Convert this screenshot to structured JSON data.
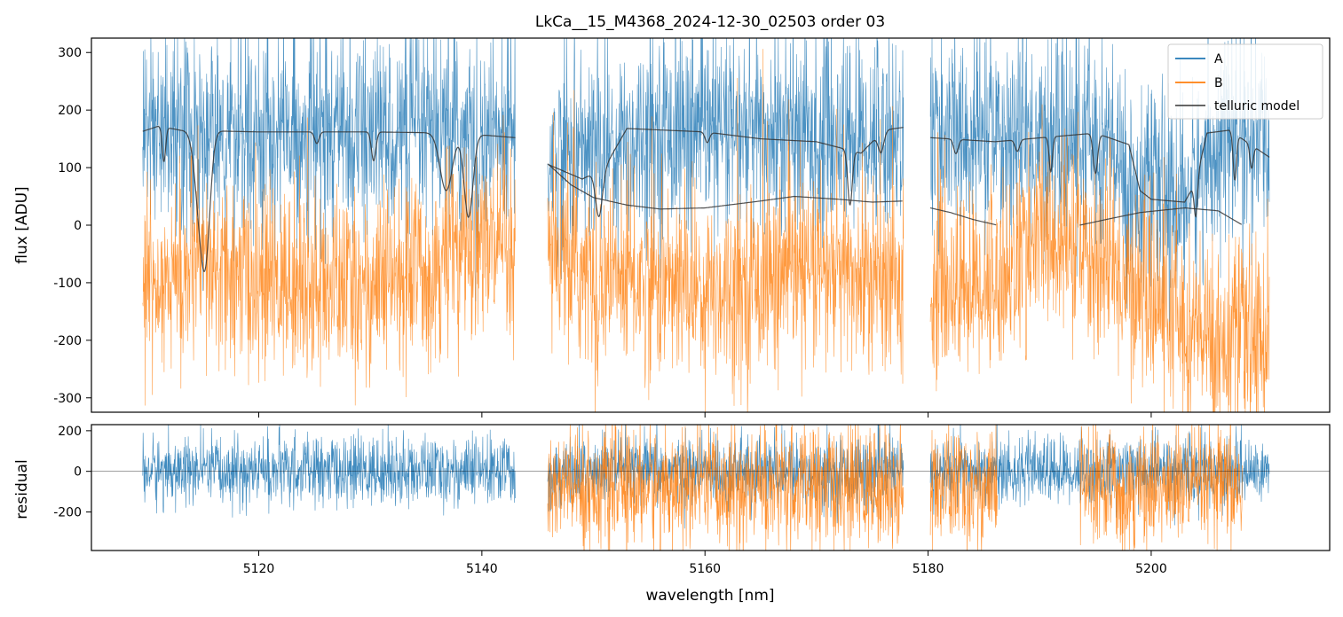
{
  "chart_data": [
    {
      "type": "line",
      "title": "LkCa__15_M4368_2024-12-30_02503  order 03",
      "xlabel": "",
      "ylabel": "flux [ADU]",
      "xlim": [
        5105,
        5216
      ],
      "ylim": [
        -325,
        325
      ],
      "xticks": [
        5120,
        5140,
        5160,
        5180,
        5200
      ],
      "yticks": [
        -300,
        -200,
        -100,
        0,
        100,
        200,
        300
      ],
      "legend": {
        "placement": "top-right",
        "entries": [
          "A",
          "B",
          "telluric model"
        ]
      },
      "segments": [
        [
          5109.6,
          5143.0
        ],
        [
          5145.9,
          5177.8
        ],
        [
          5180.2,
          5210.6
        ]
      ],
      "series": [
        {
          "name": "A",
          "color": "#1f77b4",
          "baseline": [
            [
              5109.6,
              165
            ],
            [
              5120,
              160
            ],
            [
              5130,
              160
            ],
            [
              5138,
              150
            ],
            [
              5143,
              150
            ],
            [
              5146,
              120
            ],
            [
              5150,
              130
            ],
            [
              5155,
              165
            ],
            [
              5160,
              160
            ],
            [
              5170,
              150
            ],
            [
              5177.8,
              160
            ],
            [
              5180.2,
              150
            ],
            [
              5190,
              150
            ],
            [
              5196,
              145
            ],
            [
              5198,
              60
            ],
            [
              5203,
              40
            ],
            [
              5206,
              150
            ],
            [
              5210.6,
              145
            ]
          ],
          "noise": 85
        },
        {
          "name": "B",
          "color": "#ff7f0e",
          "baseline": [
            [
              5109.6,
              -100
            ],
            [
              5115,
              -80
            ],
            [
              5120,
              -100
            ],
            [
              5130,
              -110
            ],
            [
              5137,
              -60
            ],
            [
              5140,
              -20
            ],
            [
              5143,
              -90
            ],
            [
              5146,
              -60
            ],
            [
              5150,
              -90
            ],
            [
              5160,
              -110
            ],
            [
              5170,
              -80
            ],
            [
              5177.8,
              -110
            ],
            [
              5180.2,
              -110
            ],
            [
              5186,
              -100
            ],
            [
              5190,
              -20
            ],
            [
              5195,
              -60
            ],
            [
              5200,
              -130
            ],
            [
              5205,
              -200
            ],
            [
              5210.6,
              -200
            ]
          ],
          "noise": 80
        },
        {
          "name": "telluric model",
          "color": "#333333",
          "upper_continuum": [
            [
              5109.6,
              163
            ],
            [
              5111,
              172
            ],
            [
              5113,
              165
            ],
            [
              5120,
              162
            ],
            [
              5130,
              162
            ],
            [
              5138,
              160
            ],
            [
              5143,
              152
            ],
            [
              5146,
              105
            ],
            [
              5149,
              80
            ],
            [
              5151,
              100
            ],
            [
              5153,
              168
            ],
            [
              5160,
              162
            ],
            [
              5165,
              150
            ],
            [
              5170,
              145
            ],
            [
              5172,
              135
            ],
            [
              5174,
              125
            ],
            [
              5176,
              165
            ],
            [
              5177.8,
              170
            ],
            [
              5180.2,
              152
            ],
            [
              5186,
              145
            ],
            [
              5195,
              160
            ],
            [
              5198,
              140
            ],
            [
              5199,
              60
            ],
            [
              5200,
              45
            ],
            [
              5203,
              40
            ],
            [
              5204,
              75
            ],
            [
              5205,
              160
            ],
            [
              5207,
              165
            ],
            [
              5210.6,
              118
            ]
          ],
          "absorption_lines": [
            [
              5111.5,
              60,
              0.15
            ],
            [
              5114.8,
              145,
              0.5
            ],
            [
              5115.3,
              140,
              0.4
            ],
            [
              5125.2,
              20,
              0.2
            ],
            [
              5130.3,
              50,
              0.2
            ],
            [
              5136.8,
              100,
              0.55
            ],
            [
              5138.8,
              145,
              0.4
            ],
            [
              5150.5,
              80,
              0.3
            ],
            [
              5160.2,
              18,
              0.2
            ],
            [
              5173.0,
              95,
              0.2
            ],
            [
              5175.8,
              35,
              0.25
            ],
            [
              5182.5,
              25,
              0.2
            ],
            [
              5188.0,
              20,
              0.2
            ],
            [
              5191.0,
              60,
              0.15
            ],
            [
              5195.0,
              70,
              0.2
            ],
            [
              5204.0,
              60,
              0.15
            ],
            [
              5207.5,
              80,
              0.15
            ],
            [
              5209.0,
              40,
              0.15
            ]
          ],
          "lower_curves": [
            [
              [
                5146.0,
                105
              ],
              [
                5148,
                70
              ],
              [
                5150,
                48
              ],
              [
                5153,
                35
              ],
              [
                5156,
                28
              ],
              [
                5160,
                30
              ],
              [
                5165,
                42
              ],
              [
                5168,
                50
              ],
              [
                5172,
                45
              ],
              [
                5175,
                40
              ],
              [
                5177.8,
                42
              ]
            ],
            [
              [
                5180.2,
                30
              ],
              [
                5182,
                22
              ],
              [
                5184,
                10
              ],
              [
                5186.2,
                0
              ]
            ],
            [
              [
                5193.6,
                0
              ],
              [
                5196,
                10
              ],
              [
                5199,
                22
              ],
              [
                5203,
                30
              ],
              [
                5206,
                25
              ],
              [
                5208.2,
                0
              ]
            ]
          ]
        }
      ]
    },
    {
      "type": "line",
      "title": "",
      "xlabel": "wavelength [nm]",
      "ylabel": "residual",
      "xlim": [
        5105,
        5216
      ],
      "ylim": [
        -390,
        230
      ],
      "yticks": [
        -200,
        0,
        200
      ],
      "xticks": [
        5120,
        5140,
        5160,
        5180,
        5200
      ],
      "reference_line": 0,
      "series": [
        {
          "name": "A",
          "color": "#1f77b4",
          "ranges": [
            [
              5109.6,
              5143.0
            ],
            [
              5145.9,
              5177.8
            ],
            [
              5180.2,
              5210.6
            ]
          ],
          "noise": 85
        },
        {
          "name": "B",
          "color": "#ff7f0e",
          "ranges": [
            [
              5145.9,
              5177.8
            ],
            [
              5180.2,
              5186.2
            ],
            [
              5193.6,
              5208.2
            ]
          ],
          "noise": 150,
          "offset": -80
        }
      ]
    }
  ]
}
